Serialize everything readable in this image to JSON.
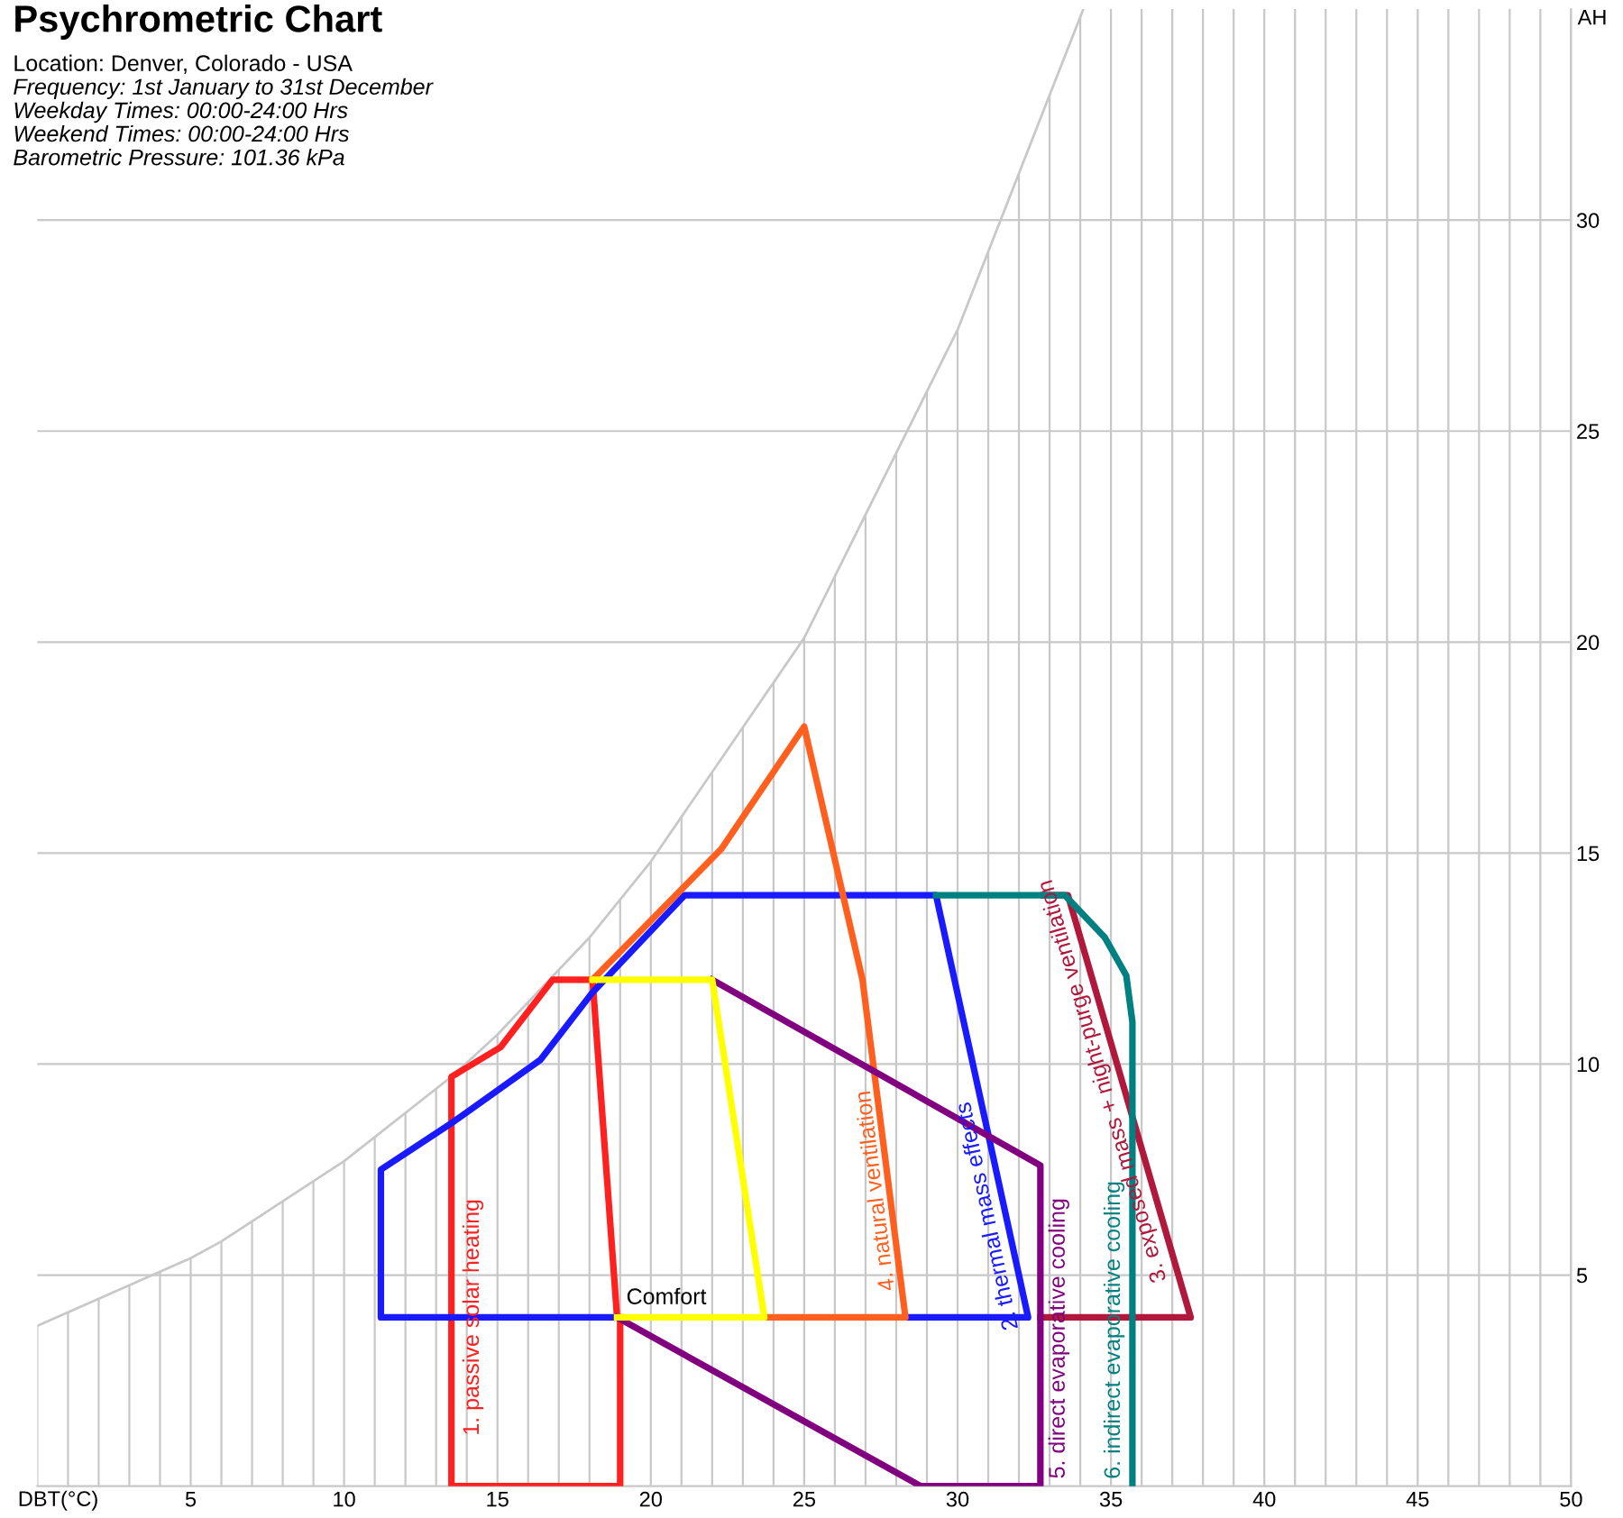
{
  "chart_data": {
    "type": "line",
    "title": "Psychrometric Chart",
    "subtitle": "Location: Denver, Colorado - USA",
    "xlabel": "DBT(°C)",
    "ylabel": "AH",
    "xlim": [
      0,
      50
    ],
    "ylim": [
      0,
      35
    ],
    "xticks": [
      {
        "value": 0,
        "label": null
      },
      {
        "value": 1,
        "label": null
      },
      {
        "value": 2,
        "label": null
      },
      {
        "value": 3,
        "label": null
      },
      {
        "value": 4,
        "label": null
      },
      5,
      {
        "value": 6,
        "label": null
      },
      {
        "value": 7,
        "label": null
      },
      {
        "value": 8,
        "label": null
      },
      {
        "value": 9,
        "label": null
      },
      10,
      {
        "value": 11,
        "label": null
      },
      {
        "value": 12,
        "label": null
      },
      {
        "value": 13,
        "label": null
      },
      {
        "value": 14,
        "label": null
      },
      15,
      {
        "value": 16,
        "label": null
      },
      {
        "value": 17,
        "label": null
      },
      {
        "value": 18,
        "label": null
      },
      {
        "value": 19,
        "label": null
      },
      20,
      {
        "value": 21,
        "label": null
      },
      {
        "value": 22,
        "label": null
      },
      {
        "value": 23,
        "label": null
      },
      {
        "value": 24,
        "label": null
      },
      25,
      {
        "value": 26,
        "label": null
      },
      {
        "value": 27,
        "label": null
      },
      {
        "value": 28,
        "label": null
      },
      {
        "value": 29,
        "label": null
      },
      30,
      {
        "value": 31,
        "label": null
      },
      {
        "value": 32,
        "label": null
      },
      {
        "value": 33,
        "label": null
      },
      {
        "value": 34,
        "label": null
      },
      35,
      {
        "value": 36,
        "label": null
      },
      {
        "value": 37,
        "label": null
      },
      {
        "value": 38,
        "label": null
      },
      {
        "value": 39,
        "label": null
      },
      40,
      {
        "value": 41,
        "label": null
      },
      {
        "value": 42,
        "label": null
      },
      {
        "value": 43,
        "label": null
      },
      {
        "value": 44,
        "label": null
      },
      45,
      {
        "value": 46,
        "label": null
      },
      {
        "value": 47,
        "label": null
      },
      {
        "value": 48,
        "label": null
      },
      {
        "value": 49,
        "label": null
      },
      50
    ],
    "yticks": [
      5,
      10,
      15,
      20,
      25,
      30
    ],
    "grid": true,
    "legend": false,
    "marker": "none",
    "line_style": "solid",
    "series": [
      {
        "color": "#c8c8c8",
        "x": [
          0,
          5,
          6,
          10,
          13.5,
          15,
          18,
          20,
          25,
          30,
          34.1
        ],
        "values": [
          3.8,
          5.4,
          5.8,
          7.7,
          9.7,
          10.7,
          13.0,
          14.8,
          20.1,
          27.4,
          35
        ]
      },
      {
        "name": "1. passive solar heating",
        "color": "#ff2020",
        "x": [
          18.9,
          18.1,
          16.8,
          15.1,
          13.5,
          13.5,
          19,
          19
        ],
        "values": [
          4,
          12,
          12,
          10.4,
          9.7,
          0,
          0,
          4
        ]
      },
      {
        "name": "2. thermal mass effects",
        "color": "#1a1aff",
        "x": [
          28.3,
          32.3,
          29.3,
          21.1,
          18.1,
          16.4,
          13.5,
          11.2,
          11.2,
          18.9
        ],
        "values": [
          4,
          4,
          14,
          14,
          11.7,
          10.1,
          8.6,
          7.5,
          4,
          4
        ]
      },
      {
        "name": "3. exposed mass + night-purge ventilation",
        "color": "#b0183c",
        "x": [
          32.7,
          37.6,
          33.6,
          32.8
        ],
        "values": [
          4,
          4,
          14,
          14
        ]
      },
      {
        "name": "4. natural ventilation",
        "color": "#ff6020",
        "x": [
          18.1,
          22.3,
          25,
          26.9,
          28.3,
          23.7
        ],
        "values": [
          12,
          15.1,
          18,
          12,
          4,
          4
        ]
      },
      {
        "name": "5. direct evaporative cooling",
        "color": "#800080",
        "x": [
          22,
          32.7,
          32.7,
          28.8,
          18.9
        ],
        "values": [
          12,
          7.6,
          0,
          0,
          4
        ]
      },
      {
        "name": "6. indirect evaporative cooling",
        "color": "#008080",
        "x": [
          29.3,
          33.5,
          34.8,
          35.5,
          35.7,
          35.7
        ],
        "values": [
          14,
          14,
          13.0,
          12.1,
          11.0,
          0
        ]
      },
      {
        "name": "Comfort",
        "color": "#ffff00",
        "x": [
          18.9,
          23.7,
          22,
          18.1
        ],
        "values": [
          4,
          4,
          12,
          12
        ]
      }
    ],
    "annotations": [
      "Frequency: 1st January to 31st December",
      "Weekday Times: 00:00-24:00 Hrs",
      "Weekend Times: 00:00-24:00 Hrs",
      "Barometric Pressure: 101.36 kPa"
    ]
  }
}
